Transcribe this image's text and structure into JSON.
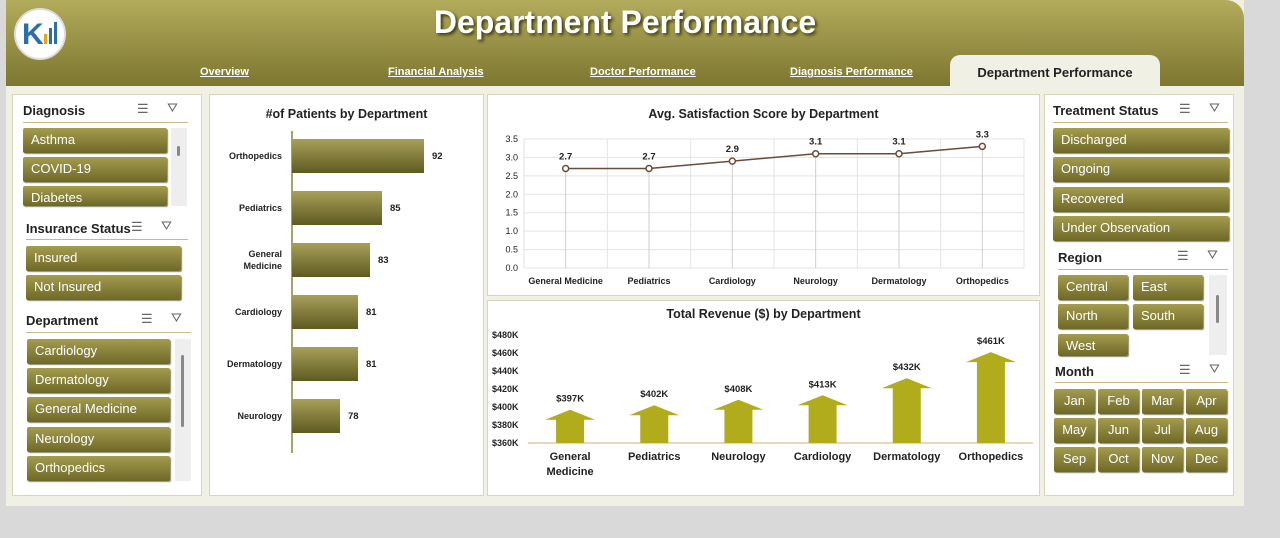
{
  "header": {
    "title": "Department Performance",
    "nav": [
      "Overview",
      "Financial Analysis",
      "Doctor Performance",
      "Diagnosis Performance"
    ],
    "active_tab": "Department Performance"
  },
  "slicers": {
    "diagnosis": {
      "title": "Diagnosis",
      "items": [
        "Asthma",
        "COVID-19",
        "Diabetes"
      ]
    },
    "insurance": {
      "title": "Insurance Status",
      "items": [
        "Insured",
        "Not Insured"
      ]
    },
    "department": {
      "title": "Department",
      "items": [
        "Cardiology",
        "Dermatology",
        "General Medicine",
        "Neurology",
        "Orthopedics"
      ]
    },
    "treatment": {
      "title": "Treatment Status",
      "items": [
        "Discharged",
        "Ongoing",
        "Recovered",
        "Under Observation"
      ]
    },
    "region": {
      "title": "Region",
      "items": [
        "Central",
        "East",
        "North",
        "South",
        "West"
      ]
    },
    "month": {
      "title": "Month",
      "items": [
        "Jan",
        "Feb",
        "Mar",
        "Apr",
        "May",
        "Jun",
        "Jul",
        "Aug",
        "Sep",
        "Oct",
        "Nov",
        "Dec"
      ]
    }
  },
  "colors": {
    "accent": "#8c8535",
    "bar_dark": "#6e6828",
    "line": "#6b4a3a",
    "arrow": "#b1ac1c"
  },
  "chart_data": [
    {
      "type": "bar",
      "title": "#of Patients by Department",
      "categories": [
        "Orthopedics",
        "Pediatrics",
        "General Medicine",
        "Cardiology",
        "Dermatology",
        "Neurology"
      ],
      "values": [
        92,
        85,
        83,
        81,
        81,
        78
      ]
    },
    {
      "type": "line",
      "title": "Avg. Satisfaction Score by Department",
      "categories": [
        "General Medicine",
        "Pediatrics",
        "Cardiology",
        "Neurology",
        "Dermatology",
        "Orthopedics"
      ],
      "values": [
        2.7,
        2.7,
        2.9,
        3.1,
        3.1,
        3.3
      ],
      "yticks": [
        "0.0",
        "0.5",
        "1.0",
        "1.5",
        "2.0",
        "2.5",
        "3.0",
        "3.5"
      ],
      "ylim": [
        0,
        3.5
      ]
    },
    {
      "type": "bar",
      "title": "Total Revenue ($) by Department",
      "categories": [
        "General Medicine",
        "Pediatrics",
        "Neurology",
        "Cardiology",
        "Dermatology",
        "Orthopedics"
      ],
      "values": [
        397,
        402,
        408,
        413,
        432,
        461
      ],
      "labels": [
        "$397K",
        "$402K",
        "$408K",
        "$413K",
        "$432K",
        "$461K"
      ],
      "yticks": [
        "$360K",
        "$380K",
        "$400K",
        "$420K",
        "$440K",
        "$460K",
        "$480K"
      ],
      "ylim": [
        360,
        480
      ]
    }
  ]
}
